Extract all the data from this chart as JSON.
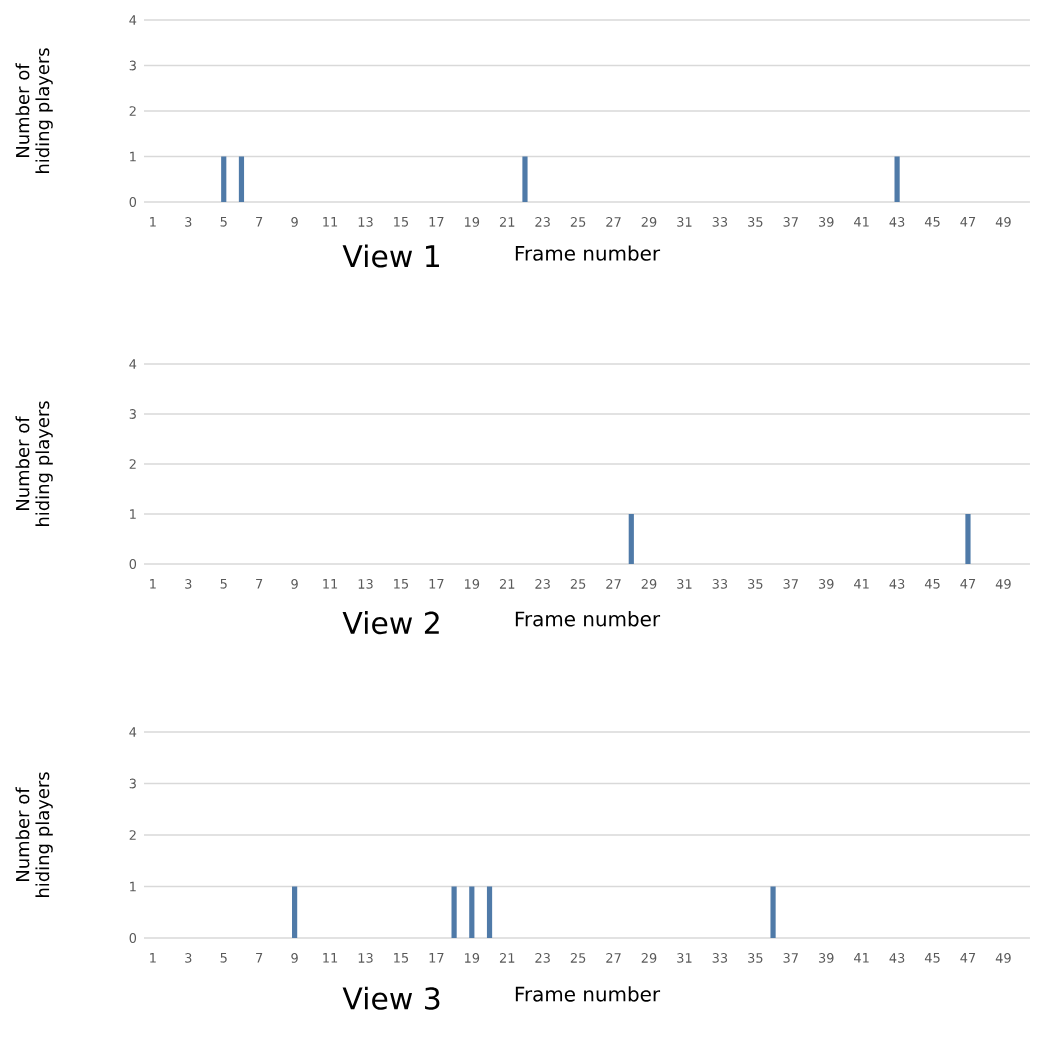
{
  "chart_data": [
    {
      "type": "bar",
      "title": "View 1",
      "xlabel": "Frame number",
      "ylabel": "Number of hiding players",
      "categories": [
        "1",
        null,
        "3",
        null,
        "5",
        null,
        "7",
        null,
        "9",
        null,
        "11",
        null,
        "13",
        null,
        "15",
        null,
        "17",
        null,
        "19",
        null,
        "21",
        null,
        "23",
        null,
        "25",
        null,
        "27",
        null,
        "29",
        null,
        "31",
        null,
        "33",
        null,
        "35",
        null,
        "37",
        null,
        "39",
        null,
        "41",
        null,
        "43",
        null,
        "45",
        null,
        "47",
        null,
        "49",
        null
      ],
      "values": [
        0,
        0,
        0,
        0,
        1,
        1,
        0,
        0,
        0,
        0,
        0,
        0,
        0,
        0,
        0,
        0,
        0,
        0,
        0,
        0,
        0,
        1,
        0,
        0,
        0,
        0,
        0,
        0,
        0,
        0,
        0,
        0,
        0,
        0,
        0,
        0,
        0,
        0,
        0,
        0,
        0,
        0,
        1,
        0,
        0,
        0,
        0,
        0,
        0,
        0
      ],
      "color": "#4f7aa8",
      "ylim": [
        0,
        4
      ],
      "yticks": [
        0,
        1,
        2,
        3,
        4
      ],
      "grid": "y"
    },
    {
      "type": "bar",
      "title": "View 2",
      "xlabel": "Frame number",
      "ylabel": "Number of hiding players",
      "categories": [
        "1",
        null,
        "3",
        null,
        "5",
        null,
        "7",
        null,
        "9",
        null,
        "11",
        null,
        "13",
        null,
        "15",
        null,
        "17",
        null,
        "19",
        null,
        "21",
        null,
        "23",
        null,
        "25",
        null,
        "27",
        null,
        "29",
        null,
        "31",
        null,
        "33",
        null,
        "35",
        null,
        "37",
        null,
        "39",
        null,
        "41",
        null,
        "43",
        null,
        "45",
        null,
        "47",
        null,
        "49",
        null
      ],
      "values": [
        0,
        0,
        0,
        0,
        0,
        0,
        0,
        0,
        0,
        0,
        0,
        0,
        0,
        0,
        0,
        0,
        0,
        0,
        0,
        0,
        0,
        0,
        0,
        0,
        0,
        0,
        0,
        1,
        0,
        0,
        0,
        0,
        0,
        0,
        0,
        0,
        0,
        0,
        0,
        0,
        0,
        0,
        0,
        0,
        0,
        0,
        1,
        0,
        0,
        0
      ],
      "color": "#4f7aa8",
      "ylim": [
        0,
        4
      ],
      "yticks": [
        0,
        1,
        2,
        3,
        4
      ],
      "grid": "y"
    },
    {
      "type": "bar",
      "title": "View 3",
      "xlabel": "Frame number",
      "ylabel": "Number of hiding players",
      "categories": [
        "1",
        null,
        "3",
        null,
        "5",
        null,
        "7",
        null,
        "9",
        null,
        "11",
        null,
        "13",
        null,
        "15",
        null,
        "17",
        null,
        "19",
        null,
        "21",
        null,
        "23",
        null,
        "25",
        null,
        "27",
        null,
        "29",
        null,
        "31",
        null,
        "33",
        null,
        "35",
        null,
        "37",
        null,
        "39",
        null,
        "41",
        null,
        "43",
        null,
        "45",
        null,
        "47",
        null,
        "49",
        null
      ],
      "values": [
        0,
        0,
        0,
        0,
        0,
        0,
        0,
        0,
        1,
        0,
        0,
        0,
        0,
        0,
        0,
        0,
        0,
        1,
        1,
        1,
        0,
        0,
        0,
        0,
        0,
        0,
        0,
        0,
        0,
        0,
        0,
        0,
        0,
        0,
        0,
        1,
        0,
        0,
        0,
        0,
        0,
        0,
        0,
        0,
        0,
        0,
        0,
        0,
        0,
        0
      ],
      "color": "#4f7aa8",
      "ylim": [
        0,
        4
      ],
      "yticks": [
        0,
        1,
        2,
        3,
        4
      ],
      "grid": "y"
    }
  ]
}
